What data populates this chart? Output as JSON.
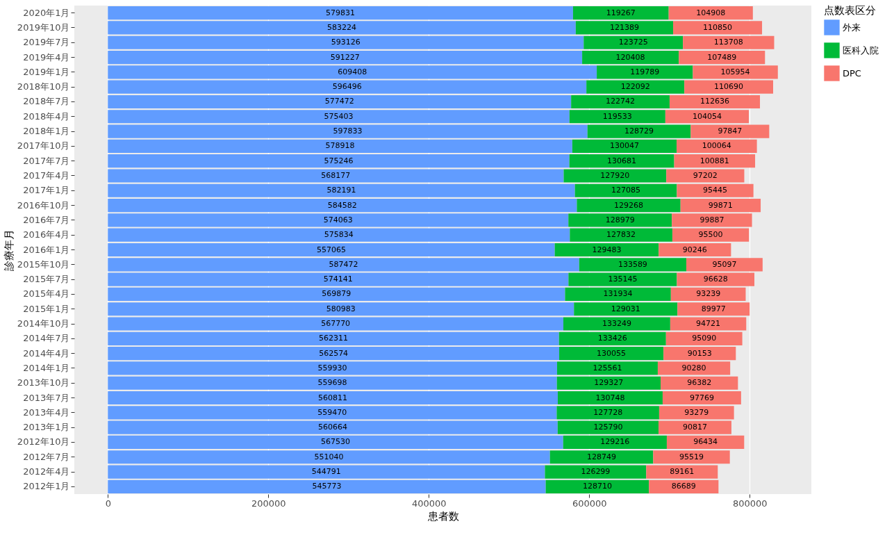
{
  "chart_data": {
    "type": "bar",
    "orientation": "horizontal",
    "stacked": true,
    "data_labels": true,
    "grid": "x",
    "legend": "right",
    "xlabel": "患者数",
    "ylabel": "診療年月",
    "legend_title": "点数表区分",
    "xlim": [
      -41800,
      876900
    ],
    "xticks": [
      0,
      200000,
      400000,
      600000,
      800000
    ],
    "categories": [
      "2020年1月",
      "2019年10月",
      "2019年7月",
      "2019年4月",
      "2019年1月",
      "2018年10月",
      "2018年7月",
      "2018年4月",
      "2018年1月",
      "2017年10月",
      "2017年7月",
      "2017年4月",
      "2017年1月",
      "2016年10月",
      "2016年7月",
      "2016年4月",
      "2016年1月",
      "2015年10月",
      "2015年7月",
      "2015年4月",
      "2015年1月",
      "2014年10月",
      "2014年7月",
      "2014年4月",
      "2014年1月",
      "2013年10月",
      "2013年7月",
      "2013年4月",
      "2013年1月",
      "2012年10月",
      "2012年7月",
      "2012年4月",
      "2012年1月"
    ],
    "series": [
      {
        "name": "外来",
        "color": "#619cff",
        "values": [
          579831,
          583224,
          593126,
          591227,
          609408,
          596496,
          577472,
          575403,
          597833,
          578918,
          575246,
          568177,
          582191,
          584582,
          574063,
          575834,
          557065,
          587472,
          574141,
          569879,
          580983,
          567770,
          562311,
          562574,
          559930,
          559698,
          560811,
          559470,
          560664,
          567530,
          551040,
          544791,
          545773
        ]
      },
      {
        "name": "医科入院",
        "color": "#00ba38",
        "values": [
          119267,
          121389,
          123725,
          120408,
          119789,
          122092,
          122742,
          119533,
          128729,
          130047,
          130681,
          127920,
          127085,
          129268,
          128979,
          127832,
          129483,
          133589,
          135145,
          131934,
          129031,
          133249,
          133426,
          130055,
          125561,
          129327,
          130748,
          127728,
          125790,
          129216,
          128749,
          126299,
          128710
        ]
      },
      {
        "name": "DPC",
        "color": "#f8766d",
        "values": [
          104908,
          110850,
          113708,
          107489,
          105954,
          110690,
          112636,
          104054,
          97847,
          100064,
          100881,
          97202,
          95445,
          99871,
          99887,
          95500,
          90246,
          95097,
          96628,
          93239,
          89977,
          94721,
          95090,
          90153,
          90280,
          96382,
          97769,
          93279,
          90817,
          96434,
          95519,
          89161,
          86689
        ]
      }
    ]
  }
}
